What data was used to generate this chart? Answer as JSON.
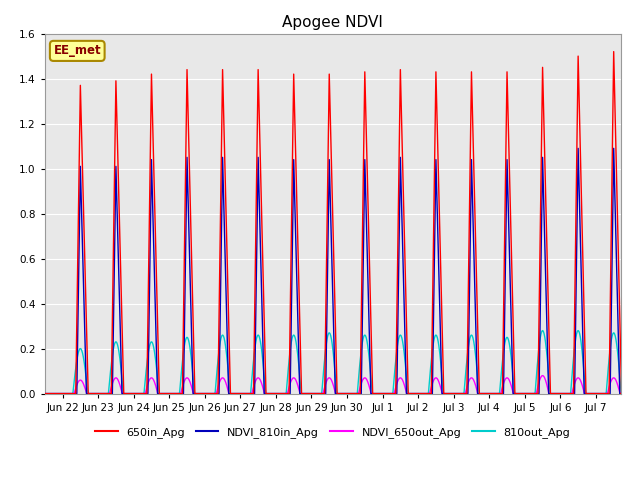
{
  "title": "Apogee NDVI",
  "ylim": [
    0,
    1.6
  ],
  "yticks": [
    0.0,
    0.2,
    0.4,
    0.6,
    0.8,
    1.0,
    1.2,
    1.4,
    1.6
  ],
  "legend_labels": [
    "650in_Apg",
    "NDVI_810in_Apg",
    "NDVI_650out_Apg",
    "810out_Apg"
  ],
  "legend_colors": [
    "#ff0000",
    "#0000bb",
    "#ff00ff",
    "#00cccc"
  ],
  "annotation_text": "EE_met",
  "annotation_fgcolor": "#880000",
  "annotation_bgcolor": "#ffff99",
  "annotation_edgecolor": "#aa8800",
  "background_color": "#e8e8e8",
  "peak_times": [
    0.5,
    1.5,
    2.5,
    3.5,
    4.5,
    5.5,
    6.5,
    7.5,
    8.5,
    9.5,
    10.5,
    11.5,
    12.5,
    13.5,
    14.5,
    15.5
  ],
  "red_peaks": [
    1.37,
    1.39,
    1.42,
    1.44,
    1.44,
    1.44,
    1.42,
    1.42,
    1.43,
    1.44,
    1.43,
    1.43,
    1.43,
    1.45,
    1.5,
    1.52
  ],
  "blue_peaks": [
    1.01,
    1.01,
    1.04,
    1.05,
    1.05,
    1.05,
    1.04,
    1.04,
    1.04,
    1.05,
    1.04,
    1.04,
    1.04,
    1.05,
    1.09,
    1.09
  ],
  "cyan_peaks": [
    0.2,
    0.23,
    0.23,
    0.25,
    0.26,
    0.26,
    0.26,
    0.27,
    0.26,
    0.26,
    0.26,
    0.26,
    0.25,
    0.28,
    0.28,
    0.27
  ],
  "magenta_peaks": [
    0.06,
    0.07,
    0.07,
    0.07,
    0.07,
    0.07,
    0.07,
    0.07,
    0.07,
    0.07,
    0.07,
    0.07,
    0.07,
    0.08,
    0.07,
    0.07
  ],
  "xtick_labels": [
    "Jun 22",
    "Jun 23",
    "Jun 24",
    "Jun 25",
    "Jun 26",
    "Jun 27",
    "Jun 28",
    "Jun 29",
    "Jun 30",
    "Jul 1",
    "Jul 2",
    "Jul 3",
    "Jul 4",
    "Jul 5",
    "Jul 6",
    "Jul 7"
  ],
  "xtick_positions": [
    0,
    1,
    2,
    3,
    4,
    5,
    6,
    7,
    8,
    9,
    10,
    11,
    12,
    13,
    14,
    15
  ],
  "xmin": -0.5,
  "xmax": 15.7
}
